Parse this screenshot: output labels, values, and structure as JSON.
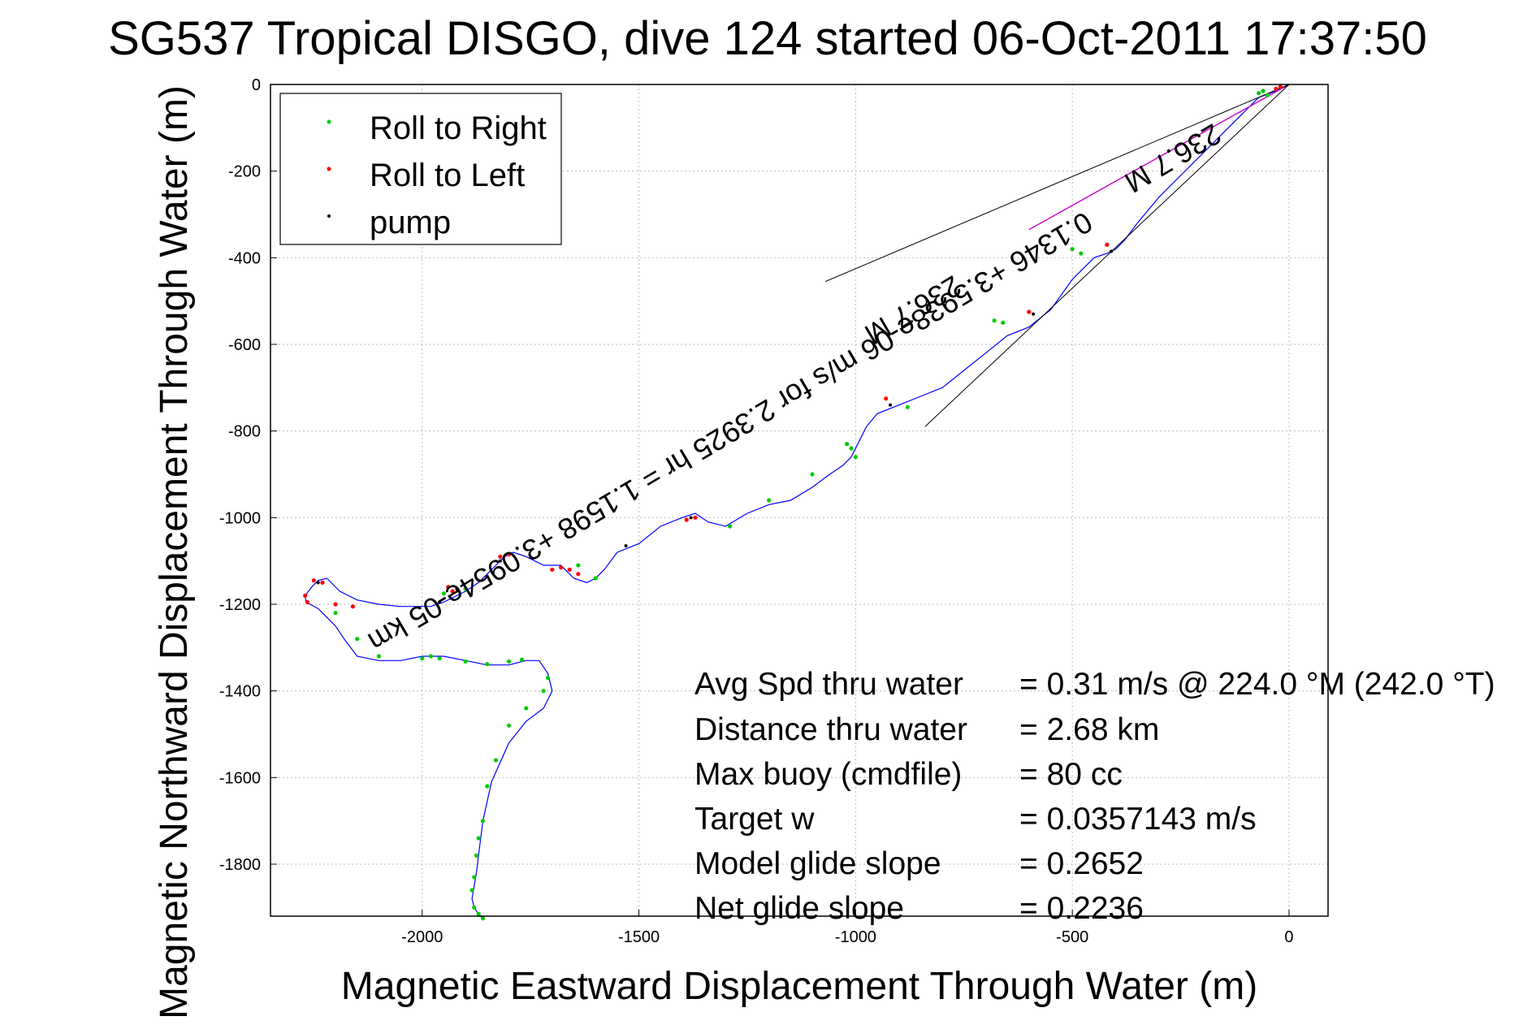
{
  "chart_data": {
    "type": "line",
    "title": "SG537 Tropical DISGO, dive 124 started 06-Oct-2011 17:37:50",
    "xlabel": "Magnetic Eastward Displacement Through Water (m)",
    "ylabel": "Magnetic Northward Displacement Through Water (m)",
    "xlim": [
      -2350,
      90
    ],
    "ylim": [
      -1920,
      0
    ],
    "xticks": [
      -2000,
      -1500,
      -1000,
      -500,
      0
    ],
    "yticks": [
      0,
      -200,
      -400,
      -600,
      -800,
      -1000,
      -1200,
      -1400,
      -1600,
      -1800
    ],
    "grid": true,
    "legend_position": "top-left",
    "legend": [
      "Roll to Right",
      "Roll to Left",
      "pump"
    ],
    "series": [
      {
        "name": "track",
        "color": "#0000ff",
        "x": [
          0,
          -30,
          -70,
          -100,
          -150,
          -200,
          -250,
          -300,
          -350,
          -380,
          -400,
          -420,
          -450,
          -500,
          -550,
          -600,
          -650,
          -700,
          -750,
          -800,
          -850,
          -900,
          -950,
          -975,
          -995,
          -1010,
          -1030,
          -1060,
          -1100,
          -1150,
          -1200,
          -1250,
          -1300,
          -1340,
          -1370,
          -1400,
          -1450,
          -1500,
          -1550,
          -1580,
          -1600,
          -1620,
          -1650,
          -1680,
          -1720,
          -1760,
          -1790,
          -1810,
          -1830,
          -1850,
          -1870,
          -1900,
          -1930,
          -1950,
          -1980,
          -2050,
          -2100,
          -2150,
          -2190,
          -2220,
          -2240,
          -2255,
          -2270,
          -2268,
          -2240,
          -2200,
          -2180,
          -2150,
          -2100,
          -2050,
          -2000,
          -1950,
          -1900,
          -1850,
          -1800,
          -1760,
          -1730,
          -1710,
          -1700,
          -1720,
          -1760,
          -1800,
          -1840,
          -1860,
          -1870,
          -1875,
          -1880,
          -1885,
          -1880,
          -1870,
          -1860
        ],
        "y": [
          0,
          -15,
          -30,
          -60,
          -110,
          -160,
          -210,
          -260,
          -320,
          -360,
          -380,
          -390,
          -400,
          -450,
          -520,
          -560,
          -580,
          -620,
          -660,
          -700,
          -720,
          -740,
          -760,
          -790,
          -830,
          -860,
          -880,
          -900,
          -930,
          -960,
          -970,
          -990,
          -1020,
          -1010,
          -990,
          -1000,
          -1020,
          -1060,
          -1080,
          -1120,
          -1140,
          -1150,
          -1140,
          -1110,
          -1110,
          -1090,
          -1080,
          -1090,
          -1110,
          -1130,
          -1150,
          -1170,
          -1185,
          -1195,
          -1205,
          -1205,
          -1200,
          -1190,
          -1170,
          -1140,
          -1145,
          -1160,
          -1180,
          -1195,
          -1210,
          -1250,
          -1280,
          -1320,
          -1330,
          -1330,
          -1320,
          -1320,
          -1330,
          -1340,
          -1340,
          -1330,
          -1330,
          -1360,
          -1400,
          -1440,
          -1470,
          -1520,
          -1610,
          -1700,
          -1780,
          -1820,
          -1850,
          -1880,
          -1900,
          -1915,
          -1925
        ]
      },
      {
        "name": "Roll to Right",
        "color": "#00cc00",
        "x": [
          -70,
          -60,
          -50,
          -480,
          -500,
          -660,
          -680,
          -880,
          -1000,
          -1010,
          -1020,
          -1100,
          -1200,
          -1290,
          -1600,
          -1640,
          -1900,
          -1950,
          -2100,
          -2150,
          -2200,
          -2000,
          -1980,
          -1960,
          -1900,
          -1850,
          -1800,
          -1770,
          -1710,
          -1720,
          -1760,
          -1800,
          -1830,
          -1850,
          -1860,
          -1870,
          -1875,
          -1880,
          -1885,
          -1880,
          -1870,
          -1860
        ],
        "y": [
          -20,
          -15,
          -25,
          -390,
          -380,
          -550,
          -545,
          -745,
          -860,
          -840,
          -830,
          -900,
          -960,
          -1020,
          -1140,
          -1110,
          -1165,
          -1175,
          -1320,
          -1280,
          -1220,
          -1325,
          -1320,
          -1325,
          -1332,
          -1338,
          -1332,
          -1328,
          -1370,
          -1400,
          -1440,
          -1480,
          -1560,
          -1620,
          -1700,
          -1740,
          -1780,
          -1830,
          -1860,
          -1900,
          -1915,
          -1925
        ]
      },
      {
        "name": "Roll to Left",
        "color": "#ff0000",
        "x": [
          -20,
          -30,
          -420,
          -600,
          -930,
          -1370,
          -1390,
          -1640,
          -1660,
          -1680,
          -1700,
          -1800,
          -1820,
          -1930,
          -1940,
          -2230,
          -2250,
          -2270,
          -2265,
          -2200,
          -2160
        ],
        "y": [
          -5,
          -10,
          -370,
          -525,
          -725,
          -1000,
          -1005,
          -1130,
          -1120,
          -1115,
          -1120,
          -1085,
          -1090,
          -1170,
          -1160,
          -1150,
          -1145,
          -1180,
          -1195,
          -1200,
          -1205
        ]
      },
      {
        "name": "pump",
        "color": "#000000",
        "x": [
          -410,
          -590,
          -920,
          -1380,
          -1530,
          -1820,
          -1920,
          -1960,
          -2240
        ],
        "y": [
          -385,
          -530,
          -740,
          -1000,
          -1065,
          -1100,
          -1165,
          -1195,
          -1150
        ]
      },
      {
        "name": "projection",
        "color": "#cc00cc",
        "x": [
          0,
          -600
        ],
        "y": [
          0,
          -335
        ]
      }
    ],
    "rotated_text": [
      "0.1346 +3.5938e-06 m/s for 2.3925 hr = 1.1598 +3.0954e-05 km",
      "236.7 M",
      "236.7 M"
    ],
    "stats": [
      {
        "label": "Avg Spd thru water",
        "value": "=  0.31 m/s @ 224.0 °M (242.0 °T)"
      },
      {
        "label": "Distance thru water",
        "value": "=  2.68 km"
      },
      {
        "label": "Max buoy (cmdfile)",
        "value": "= 80 cc"
      },
      {
        "label": "Target w",
        "value": "= 0.0357143 m/s"
      },
      {
        "label": "Model glide slope",
        "value": "= 0.2652"
      },
      {
        "label": "Net glide slope",
        "value": "= 0.2236"
      }
    ]
  }
}
